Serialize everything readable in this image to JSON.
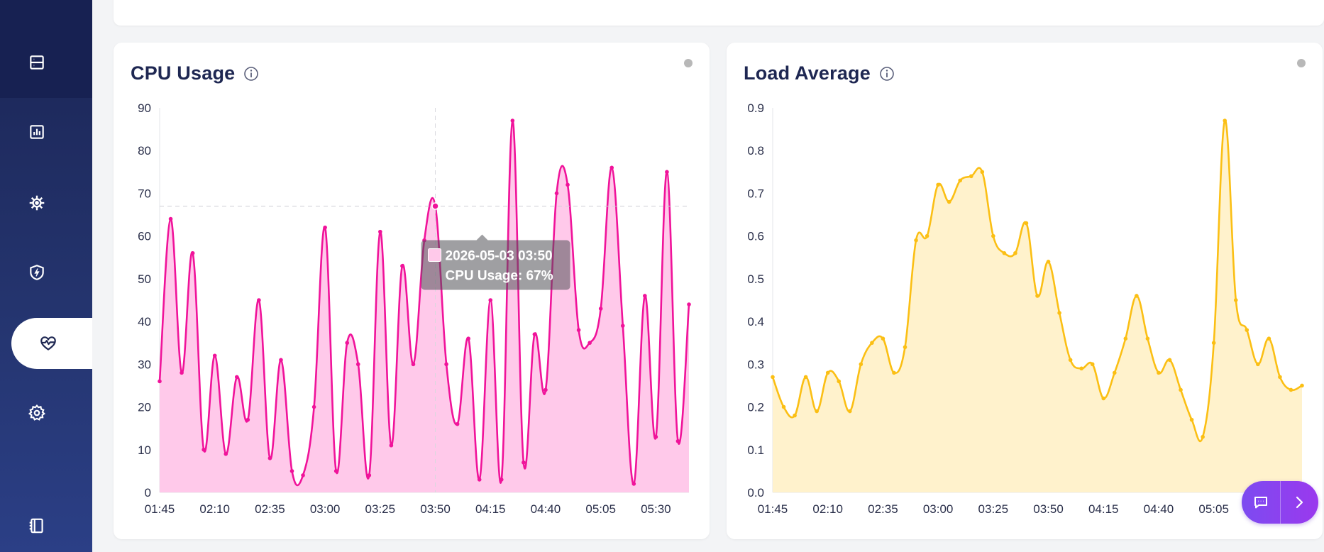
{
  "sidebar": {
    "items": [
      {
        "name": "server",
        "icon": "server-icon"
      },
      {
        "name": "analytics",
        "icon": "bar-chart-icon"
      },
      {
        "name": "kubernetes",
        "icon": "helm-wheel-icon"
      },
      {
        "name": "security",
        "icon": "shield-bolt-icon"
      },
      {
        "name": "health",
        "icon": "heart-pulse-icon",
        "active": true
      },
      {
        "name": "settings",
        "icon": "gear-icon"
      },
      {
        "name": "collapse",
        "icon": "sidebar-toggle-icon"
      }
    ]
  },
  "cpu_card": {
    "title": "CPU Usage"
  },
  "load_card": {
    "title": "Load Average"
  },
  "tooltip": {
    "line1": "2026-05-03 03:50",
    "line2": "CPU Usage: 67%"
  },
  "colors": {
    "cpu_line": "#f0139a",
    "cpu_fill": "#ffc9ea",
    "load_line": "#fbbf14",
    "load_fill": "#fff2cc"
  },
  "chart_data": [
    {
      "type": "area",
      "title": "CPU Usage",
      "xlabel": "",
      "ylabel": "",
      "ylim": [
        0,
        90
      ],
      "yticks": [
        0,
        10,
        20,
        30,
        40,
        50,
        60,
        70,
        80,
        90
      ],
      "xtick_labels": [
        "01:45",
        "02:10",
        "02:35",
        "03:00",
        "03:25",
        "03:50",
        "04:15",
        "04:40",
        "05:05",
        "05:30"
      ],
      "grid": false,
      "series": [
        {
          "values": [
            26,
            64,
            28,
            56,
            10,
            32,
            9,
            27,
            17,
            45,
            8,
            31,
            5,
            4,
            20,
            62,
            5,
            35,
            30,
            4,
            61,
            11,
            53,
            30,
            59,
            67,
            30,
            16,
            36,
            3,
            45,
            3,
            87,
            7,
            37,
            24,
            70,
            72,
            38,
            35,
            43,
            76,
            39,
            2,
            46,
            13,
            75,
            12,
            44
          ]
        }
      ],
      "highlight": {
        "index": 25,
        "value": 67
      }
    },
    {
      "type": "area",
      "title": "Load Average",
      "xlabel": "",
      "ylabel": "",
      "ylim": [
        0,
        0.9
      ],
      "yticks": [
        0,
        0.1,
        0.2,
        0.3,
        0.4,
        0.5,
        0.6,
        0.7,
        0.8,
        0.9
      ],
      "xtick_labels": [
        "01:45",
        "02:10",
        "02:35",
        "03:00",
        "03:25",
        "03:50",
        "04:15",
        "04:40",
        "05:05"
      ],
      "grid": false,
      "series": [
        {
          "values": [
            0.27,
            0.2,
            0.18,
            0.27,
            0.19,
            0.28,
            0.26,
            0.19,
            0.3,
            0.35,
            0.36,
            0.28,
            0.34,
            0.59,
            0.6,
            0.72,
            0.68,
            0.73,
            0.74,
            0.75,
            0.6,
            0.56,
            0.56,
            0.63,
            0.46,
            0.54,
            0.42,
            0.31,
            0.29,
            0.3,
            0.22,
            0.28,
            0.36,
            0.46,
            0.36,
            0.28,
            0.31,
            0.24,
            0.17,
            0.13,
            0.35,
            0.87,
            0.45,
            0.38,
            0.3,
            0.36,
            0.27,
            0.24,
            0.25
          ]
        }
      ]
    }
  ]
}
